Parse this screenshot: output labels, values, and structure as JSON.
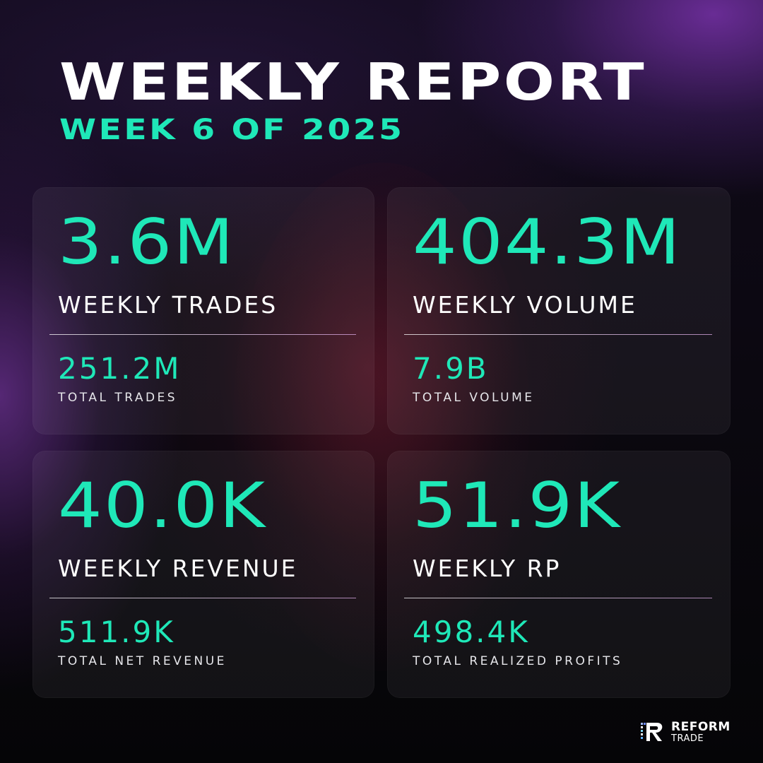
{
  "header": {
    "title": "WEEKLY REPORT",
    "subtitle": "WEEK 6 OF 2025"
  },
  "cards": [
    {
      "value": "3.6M",
      "label": "WEEKLY TRADES",
      "total_value": "251.2M",
      "total_label": "TOTAL TRADES"
    },
    {
      "value": "404.3M",
      "label": "WEEKLY VOLUME",
      "total_value": "7.9B",
      "total_label": "TOTAL VOLUME"
    },
    {
      "value": "40.0K",
      "label": "WEEKLY REVENUE",
      "total_value": "511.9K",
      "total_label": "TOTAL NET REVENUE"
    },
    {
      "value": "51.9K",
      "label": "WEEKLY RP",
      "total_value": "498.4K",
      "total_label": "TOTAL REALIZED PROFITS"
    }
  ],
  "brand": {
    "name": "REFORM",
    "sub": "TRADE",
    "icon": "reform-logo-icon"
  },
  "colors": {
    "accent": "#1fe8b8",
    "text": "#ffffff",
    "background": "#06060b"
  }
}
